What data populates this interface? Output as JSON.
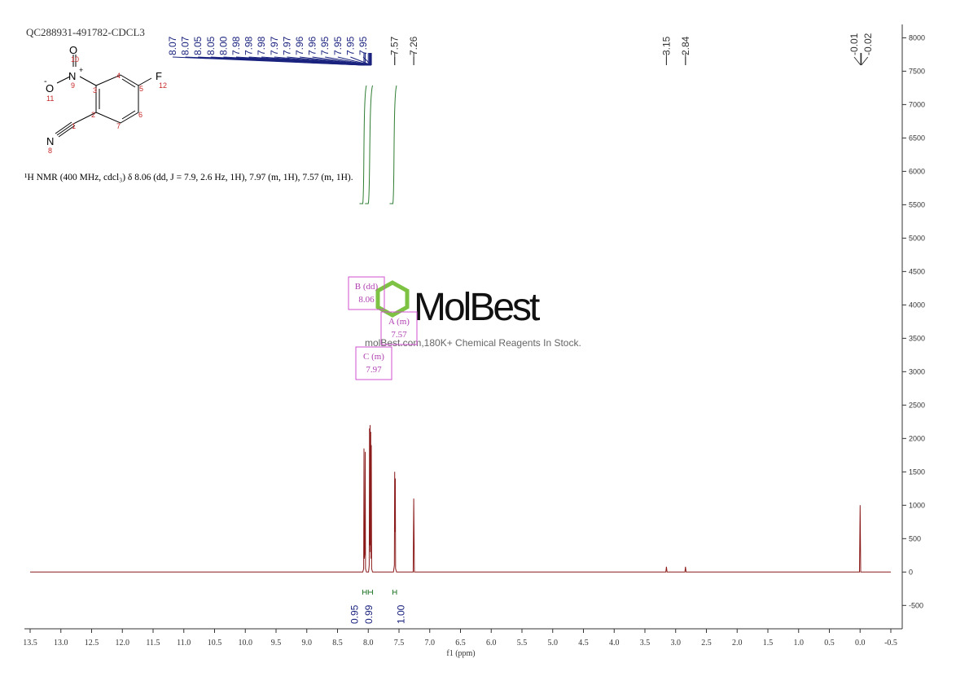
{
  "chart_data": {
    "type": "line",
    "title": "QC288931-491782-CDCL3",
    "description": "¹H NMR (400 MHz, cdcl₃) δ 8.06 (dd, J = 7.9, 2.6 Hz, 1H), 7.97 (m, 1H), 7.57 (m, 1H).",
    "xlabel": "f1 (ppm)",
    "xlim": [
      13.5,
      -0.5
    ],
    "ylim": [
      -850,
      8200
    ],
    "xticks": [
      13.5,
      {
        "value": 13,
        "label": "13.0"
      },
      12.5,
      {
        "value": 12,
        "label": "12.0"
      },
      11.5,
      {
        "value": 11,
        "label": "11.0"
      },
      10.5,
      {
        "value": 10,
        "label": "10.0"
      },
      9.5,
      {
        "value": 9,
        "label": "9.0"
      },
      8.5,
      {
        "value": 8,
        "label": "8.0"
      },
      7.5,
      {
        "value": 7,
        "label": "7.0"
      },
      6.5,
      {
        "value": 6,
        "label": "6.0"
      },
      5.5,
      {
        "value": 5,
        "label": "5.0"
      },
      4.5,
      {
        "value": 4,
        "label": "4.0"
      },
      3.5,
      {
        "value": 3,
        "label": "3.0"
      },
      2.5,
      {
        "value": 2,
        "label": "2.0"
      },
      1.5,
      {
        "value": 1,
        "label": "1.0"
      },
      0.5,
      {
        "value": 0,
        "label": "0.0"
      },
      -0.5
    ],
    "yticks": [
      -500,
      0,
      500,
      1000,
      1500,
      2000,
      2500,
      3000,
      3500,
      4000,
      4500,
      5000,
      5500,
      6000,
      6500,
      7000,
      7500,
      8000
    ],
    "series": [
      {
        "color": "#8b1a1a",
        "x": [
          13.5,
          8.09,
          8.075,
          8.07,
          8.065,
          8.055,
          8.05,
          8.045,
          8.03,
          7.995,
          7.985,
          7.98,
          7.975,
          7.97,
          7.965,
          7.96,
          7.955,
          7.95,
          7.945,
          7.93,
          7.59,
          7.575,
          7.57,
          7.565,
          7.56,
          7.555,
          7.54,
          7.27,
          7.26,
          7.25,
          3.16,
          3.15,
          3.14,
          2.85,
          2.84,
          2.83,
          0.01,
          0.0,
          -0.01,
          -0.5
        ],
        "values": [
          0,
          0,
          50,
          1850,
          200,
          300,
          1800,
          50,
          0,
          0,
          100,
          2150,
          400,
          2200,
          300,
          2100,
          200,
          1900,
          50,
          0,
          0,
          100,
          1500,
          600,
          1400,
          50,
          0,
          0,
          1100,
          0,
          0,
          80,
          0,
          0,
          80,
          0,
          0,
          1000,
          0,
          0
        ]
      }
    ],
    "peak_labels": [
      {
        "value": 8.07,
        "label": "8.07"
      },
      {
        "value": 8.07,
        "label": "8.07"
      },
      {
        "value": 8.05,
        "label": "8.05"
      },
      {
        "value": 8.05,
        "label": "8.05"
      },
      {
        "value": 8,
        "label": "8.00"
      },
      {
        "value": 7.98,
        "label": "7.98"
      },
      {
        "value": 7.98,
        "label": "7.98"
      },
      {
        "value": 7.98,
        "label": "7.98"
      },
      {
        "value": 7.97,
        "label": "7.97"
      },
      {
        "value": 7.97,
        "label": "7.97"
      },
      {
        "value": 7.96,
        "label": "7.96"
      },
      {
        "value": 7.96,
        "label": "7.96"
      },
      {
        "value": 7.95,
        "label": "7.95"
      },
      {
        "value": 7.95,
        "label": "7.95"
      },
      {
        "value": 7.95,
        "label": "7.95"
      },
      {
        "value": 7.95,
        "label": "7.95"
      },
      {
        "value": 7.57,
        "label": "7.57"
      },
      {
        "value": 7.26,
        "label": "7.26"
      },
      {
        "value": 3.15,
        "label": "3.15"
      },
      {
        "value": 2.84,
        "label": "2.84"
      },
      {
        "value": -0.01,
        "label": "-0.01"
      },
      {
        "value": -0.02,
        "label": "-0.02"
      }
    ],
    "integrals": [
      {
        "from": 8.09,
        "to": 8.03,
        "value": 0.95
      },
      {
        "from": 8.0,
        "to": 7.93,
        "value": 0.99
      },
      {
        "from": 7.6,
        "to": 7.54,
        "value": {
          "value": 1,
          "label": "1.00"
        }
      }
    ],
    "multiplets": [
      {
        "label": "B (dd)",
        "shift": "8.06"
      },
      {
        "label": "A (m)",
        "shift": "7.57"
      },
      {
        "label": "C (m)",
        "shift": "7.97"
      }
    ],
    "watermark": {
      "brand": "MolBest",
      "tagline": "molBest.com,180K+ Chemical Reagents In Stock."
    },
    "molecule": {
      "atoms": [
        "O",
        "N",
        "+",
        "O",
        "-",
        "F",
        "N"
      ],
      "numbers": [
        "10",
        "9",
        "11",
        "3",
        "4",
        "5",
        "12",
        "2",
        "6",
        "7",
        "1",
        "8"
      ]
    }
  }
}
